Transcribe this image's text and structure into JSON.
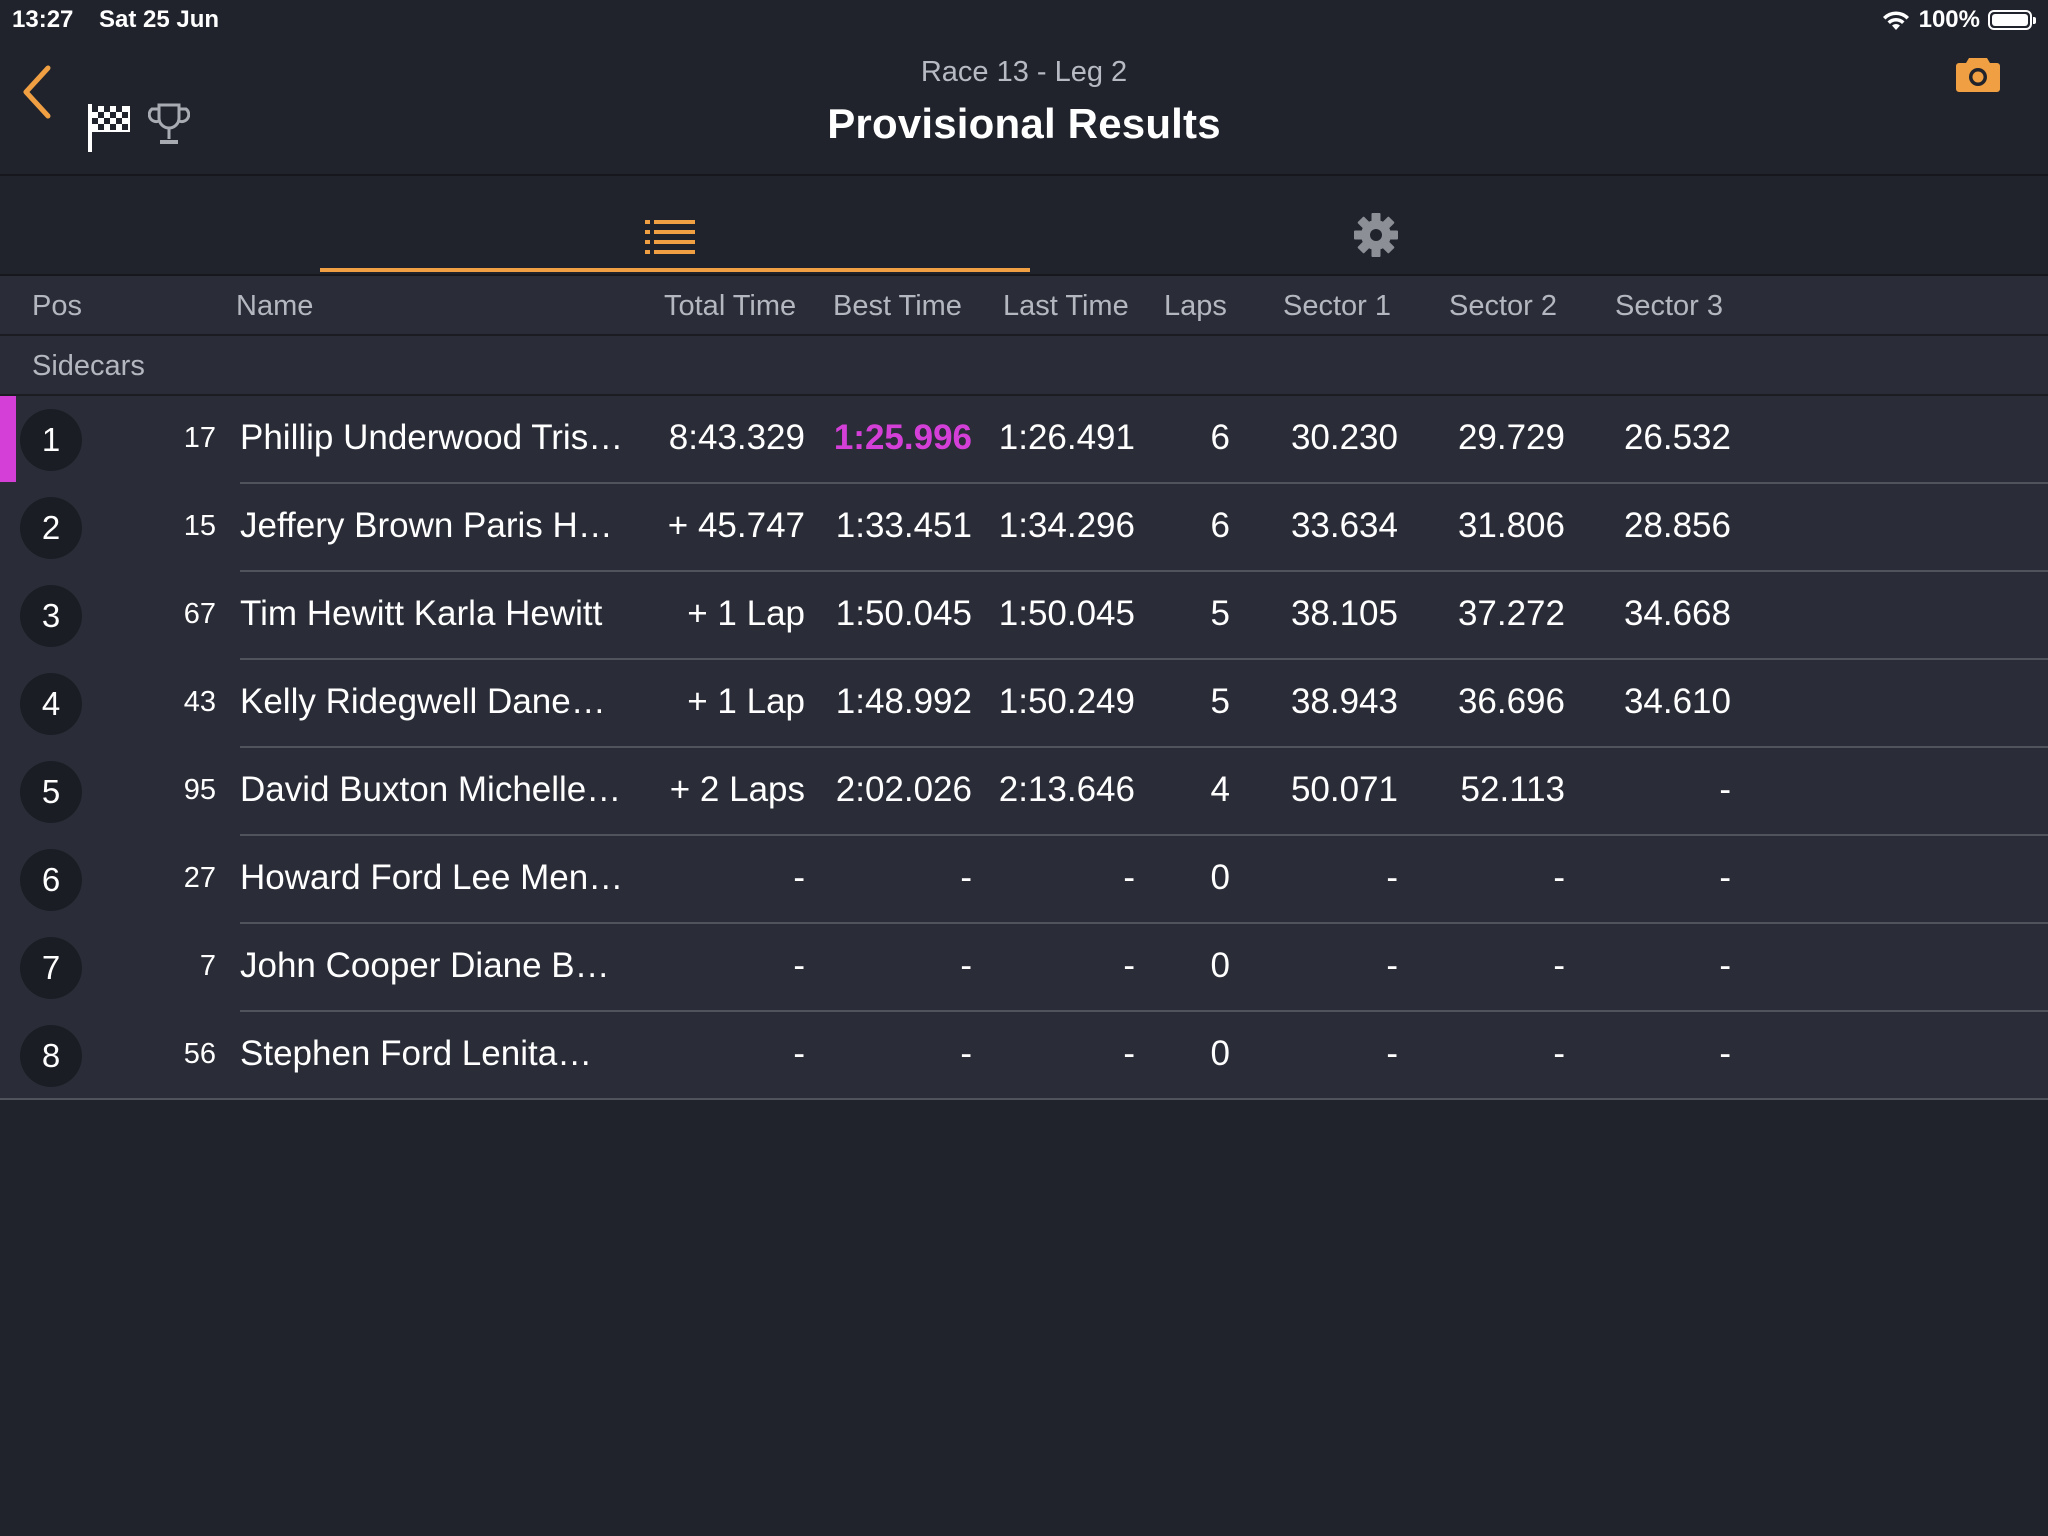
{
  "status_bar": {
    "time": "13:27",
    "date": "Sat 25 Jun",
    "battery": "100%"
  },
  "header": {
    "subtitle": "Race 13 -  Leg 2",
    "title": "Provisional Results"
  },
  "colors": {
    "accent": "#f0a043",
    "best_time": "#d43fd8",
    "background": "#20232c",
    "row_background": "#2a2d37"
  },
  "icons": {
    "back": "chevron-left-icon",
    "flag": "checkered-flag-icon",
    "trophy": "trophy-icon",
    "camera": "camera-icon",
    "list": "list-icon",
    "settings": "gear-icon"
  },
  "columns": {
    "pos": "Pos",
    "name": "Name",
    "total_time": "Total Time",
    "best_time": "Best Time",
    "last_time": "Last Time",
    "laps": "Laps",
    "sector1": "Sector 1",
    "sector2": "Sector 2",
    "sector3": "Sector 3"
  },
  "group": "Sidecars",
  "results": [
    {
      "pos": "1",
      "num": "17",
      "name": "Phillip Underwood Tris…",
      "total": "8:43.329",
      "best": "1:25.996",
      "last": "1:26.491",
      "laps": "6",
      "s1": "30.230",
      "s2": "29.729",
      "s3": "26.532",
      "best_overall": true
    },
    {
      "pos": "2",
      "num": "15",
      "name": "Jeffery Brown Paris H…",
      "total": "+ 45.747",
      "best": "1:33.451",
      "last": "1:34.296",
      "laps": "6",
      "s1": "33.634",
      "s2": "31.806",
      "s3": "28.856"
    },
    {
      "pos": "3",
      "num": "67",
      "name": "Tim Hewitt Karla Hewitt",
      "total": "+ 1 Lap",
      "best": "1:50.045",
      "last": "1:50.045",
      "laps": "5",
      "s1": "38.105",
      "s2": "37.272",
      "s3": "34.668"
    },
    {
      "pos": "4",
      "num": "43",
      "name": "Kelly Ridegwell Dane…",
      "total": "+ 1 Lap",
      "best": "1:48.992",
      "last": "1:50.249",
      "laps": "5",
      "s1": "38.943",
      "s2": "36.696",
      "s3": "34.610"
    },
    {
      "pos": "5",
      "num": "95",
      "name": "David Buxton Michelle…",
      "total": "+ 2 Laps",
      "best": "2:02.026",
      "last": "2:13.646",
      "laps": "4",
      "s1": "50.071",
      "s2": "52.113",
      "s3": "-"
    },
    {
      "pos": "6",
      "num": "27",
      "name": "Howard Ford Lee Men…",
      "total": "-",
      "best": "-",
      "last": "-",
      "laps": "0",
      "s1": "-",
      "s2": "-",
      "s3": "-"
    },
    {
      "pos": "7",
      "num": "7",
      "name": "John Cooper Diane B…",
      "total": "-",
      "best": "-",
      "last": "-",
      "laps": "0",
      "s1": "-",
      "s2": "-",
      "s3": "-"
    },
    {
      "pos": "8",
      "num": "56",
      "name": "Stephen Ford Lenita…",
      "total": "-",
      "best": "-",
      "last": "-",
      "laps": "0",
      "s1": "-",
      "s2": "-",
      "s3": "-"
    }
  ]
}
